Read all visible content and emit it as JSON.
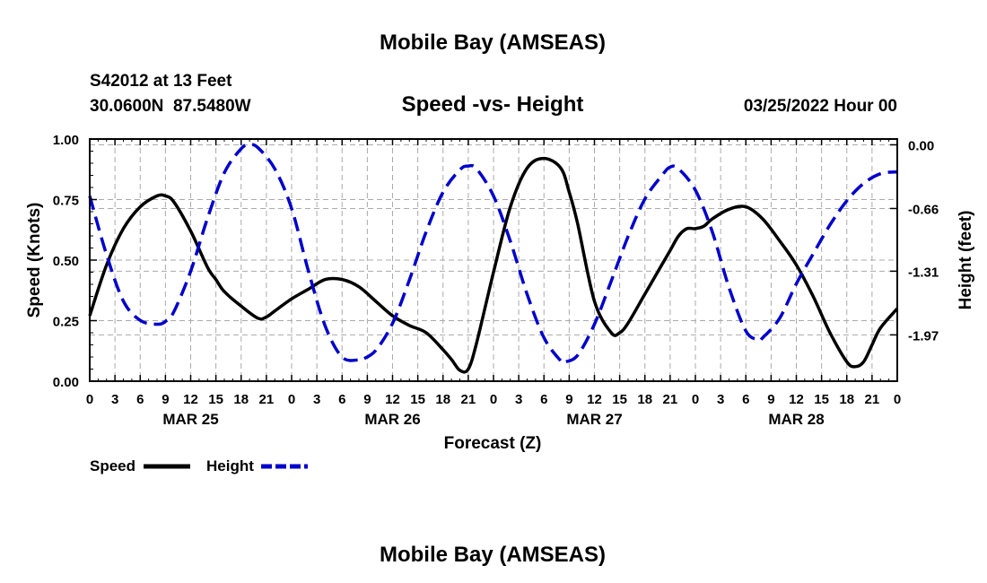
{
  "page_title": "Mobile Bay (AMSEAS)",
  "footer_title": "Mobile Bay (AMSEAS)",
  "station": {
    "name": "S42012 at 13 Feet",
    "coords": "30.0600N  87.5480W"
  },
  "chart_data": {
    "type": "line",
    "title": "Speed -vs- Height",
    "datetime": "03/25/2022 Hour 00",
    "xlabel": "Forecast (Z)",
    "ylabel_left": "Speed (Knots)",
    "ylabel_right": "Height (feet)",
    "xlim": [
      0,
      96
    ],
    "ylim_left": [
      0,
      1.0
    ],
    "ylim_right": [
      -2.45,
      0.06
    ],
    "x_ticks": [
      0,
      3,
      6,
      9,
      12,
      15,
      18,
      21,
      24,
      27,
      30,
      33,
      36,
      39,
      42,
      45,
      48,
      51,
      54,
      57,
      60,
      63,
      66,
      69,
      72,
      75,
      78,
      81,
      84,
      87,
      90,
      93,
      96
    ],
    "x_tick_labels": [
      "0",
      "3",
      "6",
      "9",
      "12",
      "15",
      "18",
      "21",
      "0",
      "3",
      "6",
      "9",
      "12",
      "15",
      "18",
      "21",
      "0",
      "3",
      "6",
      "9",
      "12",
      "15",
      "18",
      "21",
      "0",
      "3",
      "6",
      "9",
      "12",
      "15",
      "18",
      "21",
      "0"
    ],
    "date_labels": [
      {
        "label": "MAR 25",
        "x": 12
      },
      {
        "label": "MAR 26",
        "x": 36
      },
      {
        "label": "MAR 27",
        "x": 60
      },
      {
        "label": "MAR 28",
        "x": 84
      }
    ],
    "y_left_ticks": [
      0,
      0.25,
      0.5,
      0.75,
      1.0
    ],
    "y_left_tick_labels": [
      "0.00",
      "0.25",
      "0.50",
      "0.75",
      "1.00"
    ],
    "y_right_ticks": [
      0.0,
      -0.66,
      -1.31,
      -1.97
    ],
    "y_right_tick_labels": [
      "0.00",
      "-0.66",
      "-1.31",
      "-1.97"
    ],
    "grid": true,
    "legend_position": "bottom-left",
    "series": [
      {
        "name": "Speed",
        "axis": "left",
        "color": "#000000",
        "style": "solid",
        "x": [
          0,
          2,
          4,
          6,
          8,
          9,
          10,
          12,
          14,
          15,
          16,
          18,
          20,
          21,
          22,
          24,
          26,
          28,
          30,
          32,
          34,
          36,
          38,
          40,
          42,
          43,
          44,
          45,
          46,
          48,
          50,
          52,
          54,
          56,
          57,
          58,
          60,
          62,
          63,
          64,
          66,
          68,
          69,
          70,
          71,
          72,
          73,
          74,
          76,
          78,
          80,
          82,
          84,
          86,
          88,
          90,
          91,
          92,
          93,
          94,
          96
        ],
        "y": [
          0.27,
          0.48,
          0.63,
          0.72,
          0.765,
          0.765,
          0.74,
          0.62,
          0.47,
          0.42,
          0.37,
          0.31,
          0.26,
          0.265,
          0.29,
          0.34,
          0.38,
          0.42,
          0.42,
          0.39,
          0.33,
          0.27,
          0.23,
          0.2,
          0.13,
          0.09,
          0.045,
          0.05,
          0.16,
          0.45,
          0.72,
          0.88,
          0.92,
          0.88,
          0.78,
          0.65,
          0.33,
          0.2,
          0.2,
          0.24,
          0.36,
          0.48,
          0.54,
          0.6,
          0.63,
          0.63,
          0.64,
          0.67,
          0.71,
          0.72,
          0.67,
          0.58,
          0.48,
          0.35,
          0.2,
          0.08,
          0.06,
          0.08,
          0.15,
          0.22,
          0.3
        ]
      },
      {
        "name": "Height",
        "axis": "right",
        "color": "#0000cc",
        "style": "dashed",
        "x": [
          0,
          2,
          4,
          6,
          8,
          9,
          10,
          12,
          14,
          16,
          18,
          19,
          20,
          22,
          24,
          26,
          28,
          30,
          32,
          32.5,
          34,
          36,
          38,
          40,
          42,
          44,
          45,
          46,
          48,
          50,
          52,
          54,
          56,
          56.5,
          58,
          60,
          62,
          64,
          66,
          68,
          69,
          70,
          72,
          74,
          76,
          78,
          79.5,
          80,
          82,
          84,
          86,
          88,
          90,
          92,
          94,
          96
        ],
        "y": [
          -0.53,
          -1.14,
          -1.62,
          -1.82,
          -1.86,
          -1.83,
          -1.73,
          -1.31,
          -0.76,
          -0.29,
          -0.04,
          0.0,
          -0.03,
          -0.25,
          -0.66,
          -1.31,
          -1.88,
          -2.2,
          -2.23,
          -2.22,
          -2.13,
          -1.85,
          -1.4,
          -0.9,
          -0.49,
          -0.26,
          -0.22,
          -0.25,
          -0.53,
          -1.0,
          -1.55,
          -2.0,
          -2.24,
          -2.25,
          -2.18,
          -1.86,
          -1.41,
          -0.95,
          -0.56,
          -0.32,
          -0.23,
          -0.25,
          -0.47,
          -0.9,
          -1.48,
          -1.93,
          -2.02,
          -2.0,
          -1.8,
          -1.44,
          -1.13,
          -0.83,
          -0.58,
          -0.4,
          -0.3,
          -0.28
        ]
      }
    ]
  },
  "legend": {
    "speed_label": "Speed",
    "height_label": "Height"
  }
}
